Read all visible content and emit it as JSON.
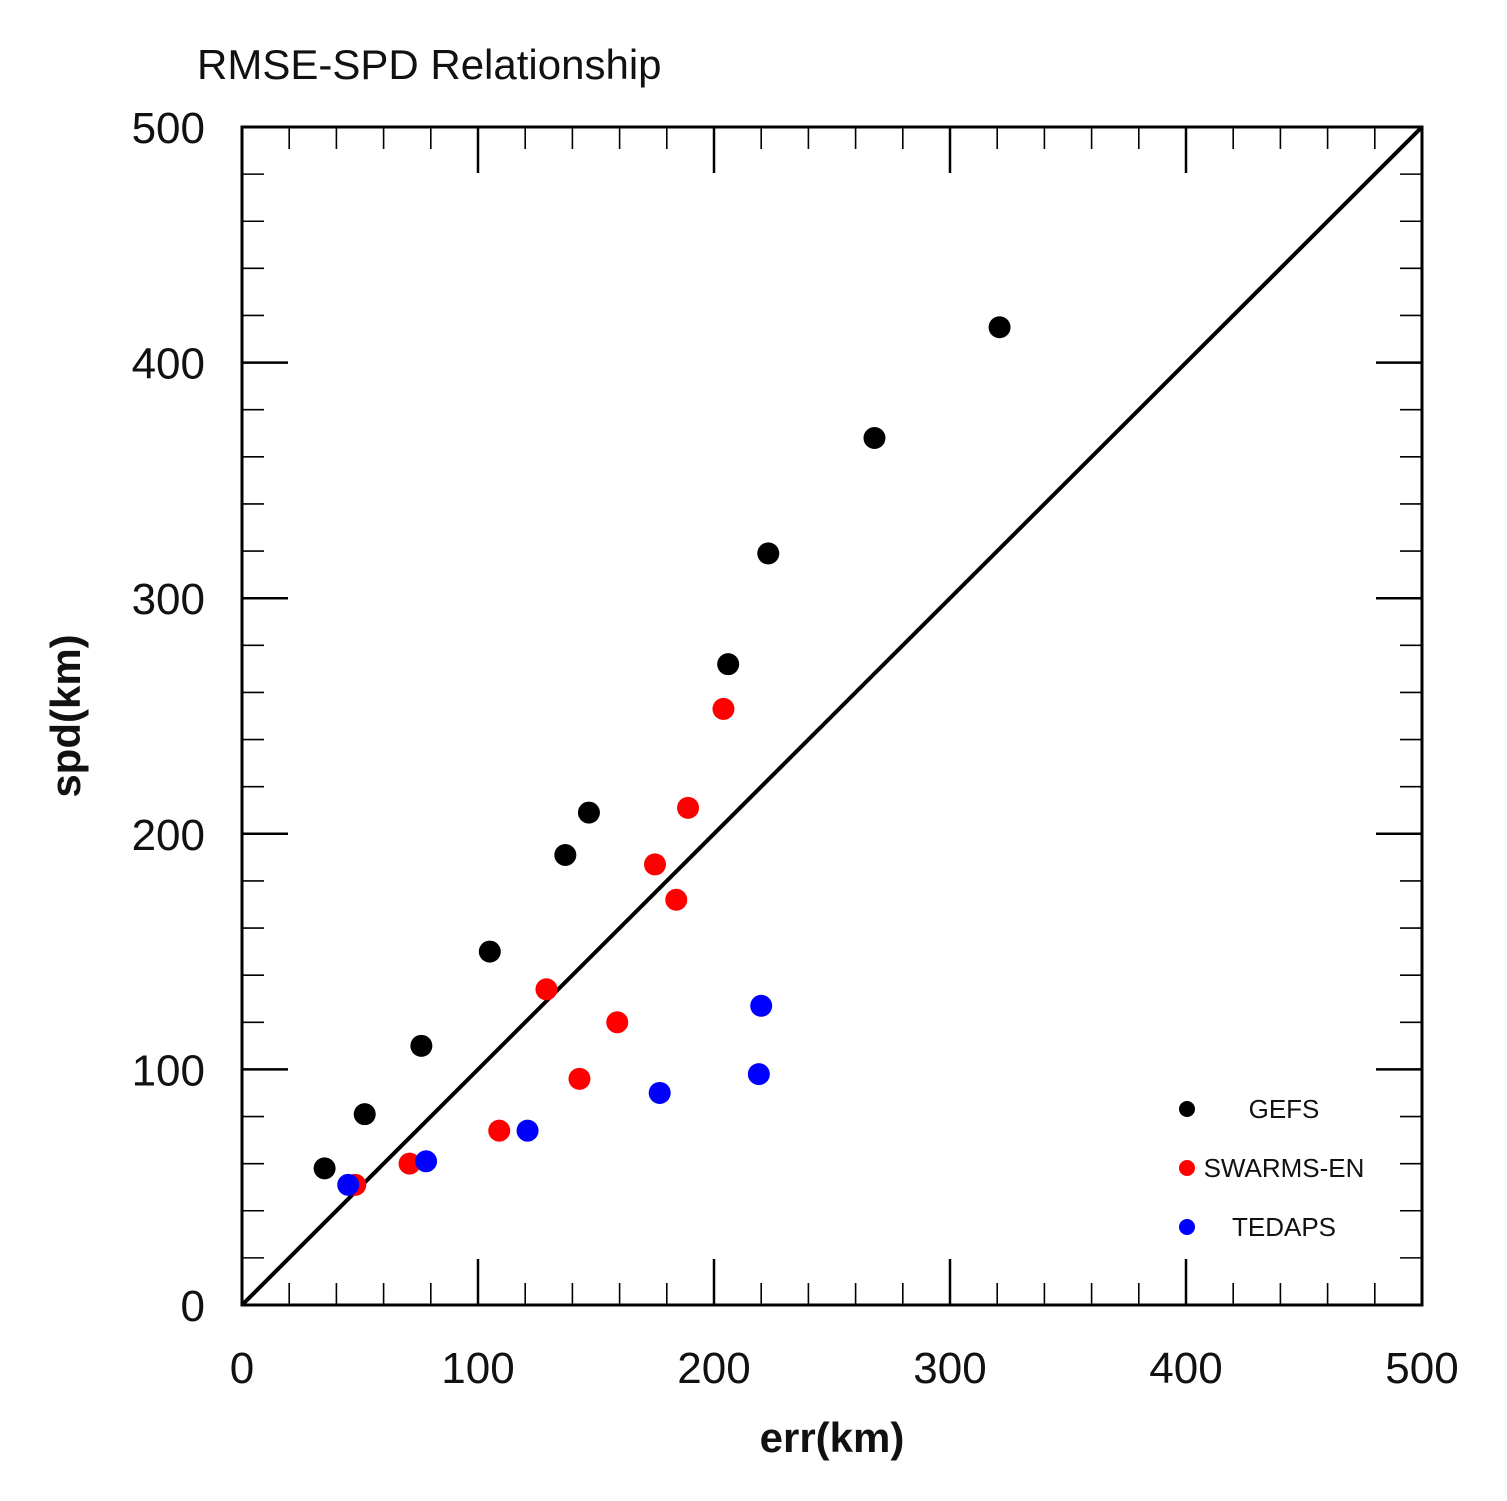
{
  "chart_data": {
    "type": "scatter",
    "title": "RMSE-SPD Relationship",
    "xlabel": "err(km)",
    "ylabel": "spd(km)",
    "xlim": [
      0,
      500
    ],
    "ylim": [
      0,
      500
    ],
    "xticks": [
      0,
      100,
      200,
      300,
      400,
      500
    ],
    "yticks": [
      0,
      100,
      200,
      300,
      400,
      500
    ],
    "xtick_labels": [
      "0",
      "100",
      "200",
      "300",
      "400",
      "500"
    ],
    "ytick_labels": [
      "0",
      "100",
      "200",
      "300",
      "400",
      "500"
    ],
    "minor_tick_step": 20,
    "reference_line": {
      "from": [
        0,
        0
      ],
      "to": [
        500,
        500
      ],
      "color": "#000000"
    },
    "legend_position": "bottom-right",
    "series": [
      {
        "name": "GEFS",
        "color": "#000000",
        "x": [
          35,
          52,
          76,
          105,
          137,
          147,
          206,
          223,
          268,
          321
        ],
        "y": [
          58,
          81,
          110,
          150,
          191,
          209,
          272,
          319,
          368,
          415
        ]
      },
      {
        "name": "SWARMS-EN",
        "color": "#ff0000",
        "x": [
          48,
          71,
          109,
          129,
          143,
          159,
          175,
          184,
          189,
          204
        ],
        "y": [
          51,
          60,
          74,
          134,
          96,
          120,
          187,
          172,
          211,
          253
        ]
      },
      {
        "name": "TEDAPS",
        "color": "#0000ff",
        "x": [
          45,
          78,
          121,
          177,
          219,
          220
        ],
        "y": [
          51,
          61,
          74,
          90,
          98,
          127
        ]
      }
    ]
  }
}
